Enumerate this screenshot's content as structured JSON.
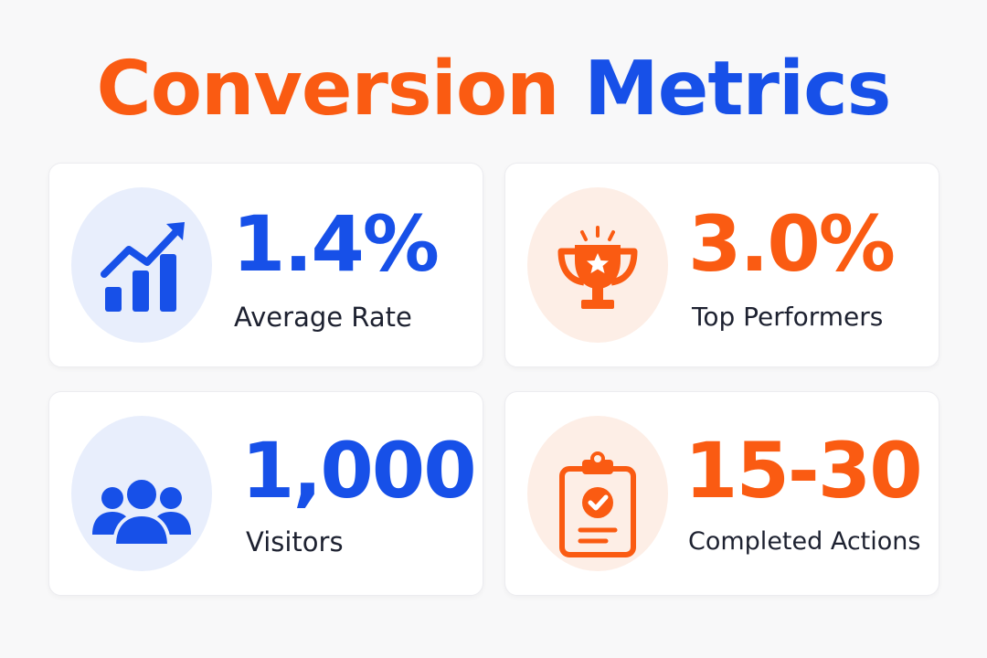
{
  "title": {
    "word1": "Conversion",
    "word2": "Metrics"
  },
  "colors": {
    "accent_orange": "#fa5b12",
    "accent_blue": "#1750e8",
    "circle_blue": "#e8eefc",
    "circle_orange": "#fdeee6",
    "label_text": "#1d2130"
  },
  "metrics": [
    {
      "value": "1.4%",
      "label": "Average Rate",
      "icon": "bar-chart-growth-icon",
      "color": "blue"
    },
    {
      "value": "3.0%",
      "label": "Top Performers",
      "icon": "trophy-star-icon",
      "color": "orange"
    },
    {
      "value": "1,000",
      "label": "Visitors",
      "icon": "people-group-icon",
      "color": "blue"
    },
    {
      "value": "15-30",
      "label": "Completed Actions",
      "icon": "clipboard-check-icon",
      "color": "orange"
    }
  ]
}
